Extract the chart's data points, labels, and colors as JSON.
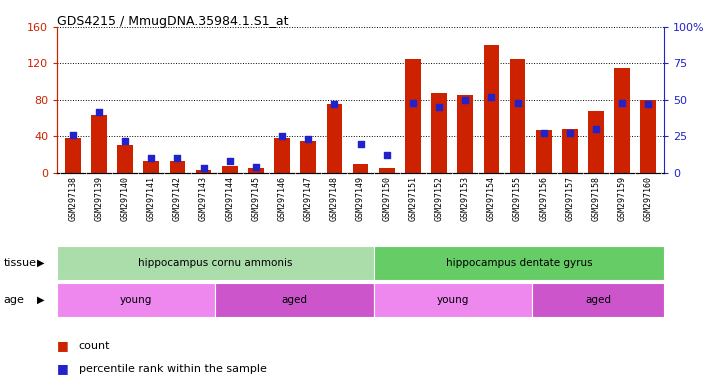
{
  "title": "GDS4215 / MmugDNA.35984.1.S1_at",
  "samples": [
    "GSM297138",
    "GSM297139",
    "GSM297140",
    "GSM297141",
    "GSM297142",
    "GSM297143",
    "GSM297144",
    "GSM297145",
    "GSM297146",
    "GSM297147",
    "GSM297148",
    "GSM297149",
    "GSM297150",
    "GSM297151",
    "GSM297152",
    "GSM297153",
    "GSM297154",
    "GSM297155",
    "GSM297156",
    "GSM297157",
    "GSM297158",
    "GSM297159",
    "GSM297160"
  ],
  "count": [
    38,
    63,
    30,
    13,
    13,
    3,
    8,
    5,
    38,
    35,
    75,
    10,
    5,
    125,
    88,
    85,
    140,
    125,
    47,
    48,
    68,
    115,
    80
  ],
  "percentile": [
    26,
    42,
    22,
    10,
    10,
    3,
    8,
    4,
    25,
    23,
    47,
    20,
    12,
    48,
    45,
    50,
    52,
    48,
    27,
    27,
    30,
    48,
    47
  ],
  "ylim_left": [
    0,
    160
  ],
  "ylim_right": [
    0,
    100
  ],
  "yticks_left": [
    0,
    40,
    80,
    120,
    160
  ],
  "yticks_right": [
    0,
    25,
    50,
    75,
    100
  ],
  "yticklabels_right": [
    "0",
    "25",
    "50",
    "75",
    "100%"
  ],
  "bar_color": "#cc2200",
  "dot_color": "#2222cc",
  "tissue_groups": [
    {
      "label": "hippocampus cornu ammonis",
      "start": 0,
      "end": 12,
      "color": "#aaddaa"
    },
    {
      "label": "hippocampus dentate gyrus",
      "start": 12,
      "end": 23,
      "color": "#66cc66"
    }
  ],
  "age_groups": [
    {
      "label": "young",
      "start": 0,
      "end": 6,
      "color": "#ee88ee"
    },
    {
      "label": "aged",
      "start": 6,
      "end": 12,
      "color": "#cc55cc"
    },
    {
      "label": "young",
      "start": 12,
      "end": 18,
      "color": "#ee88ee"
    },
    {
      "label": "aged",
      "start": 18,
      "end": 23,
      "color": "#cc55cc"
    }
  ],
  "legend_count_label": "count",
  "legend_pct_label": "percentile rank within the sample",
  "tissue_label": "tissue",
  "age_label": "age",
  "xticklabel_bg": "#dddddd"
}
